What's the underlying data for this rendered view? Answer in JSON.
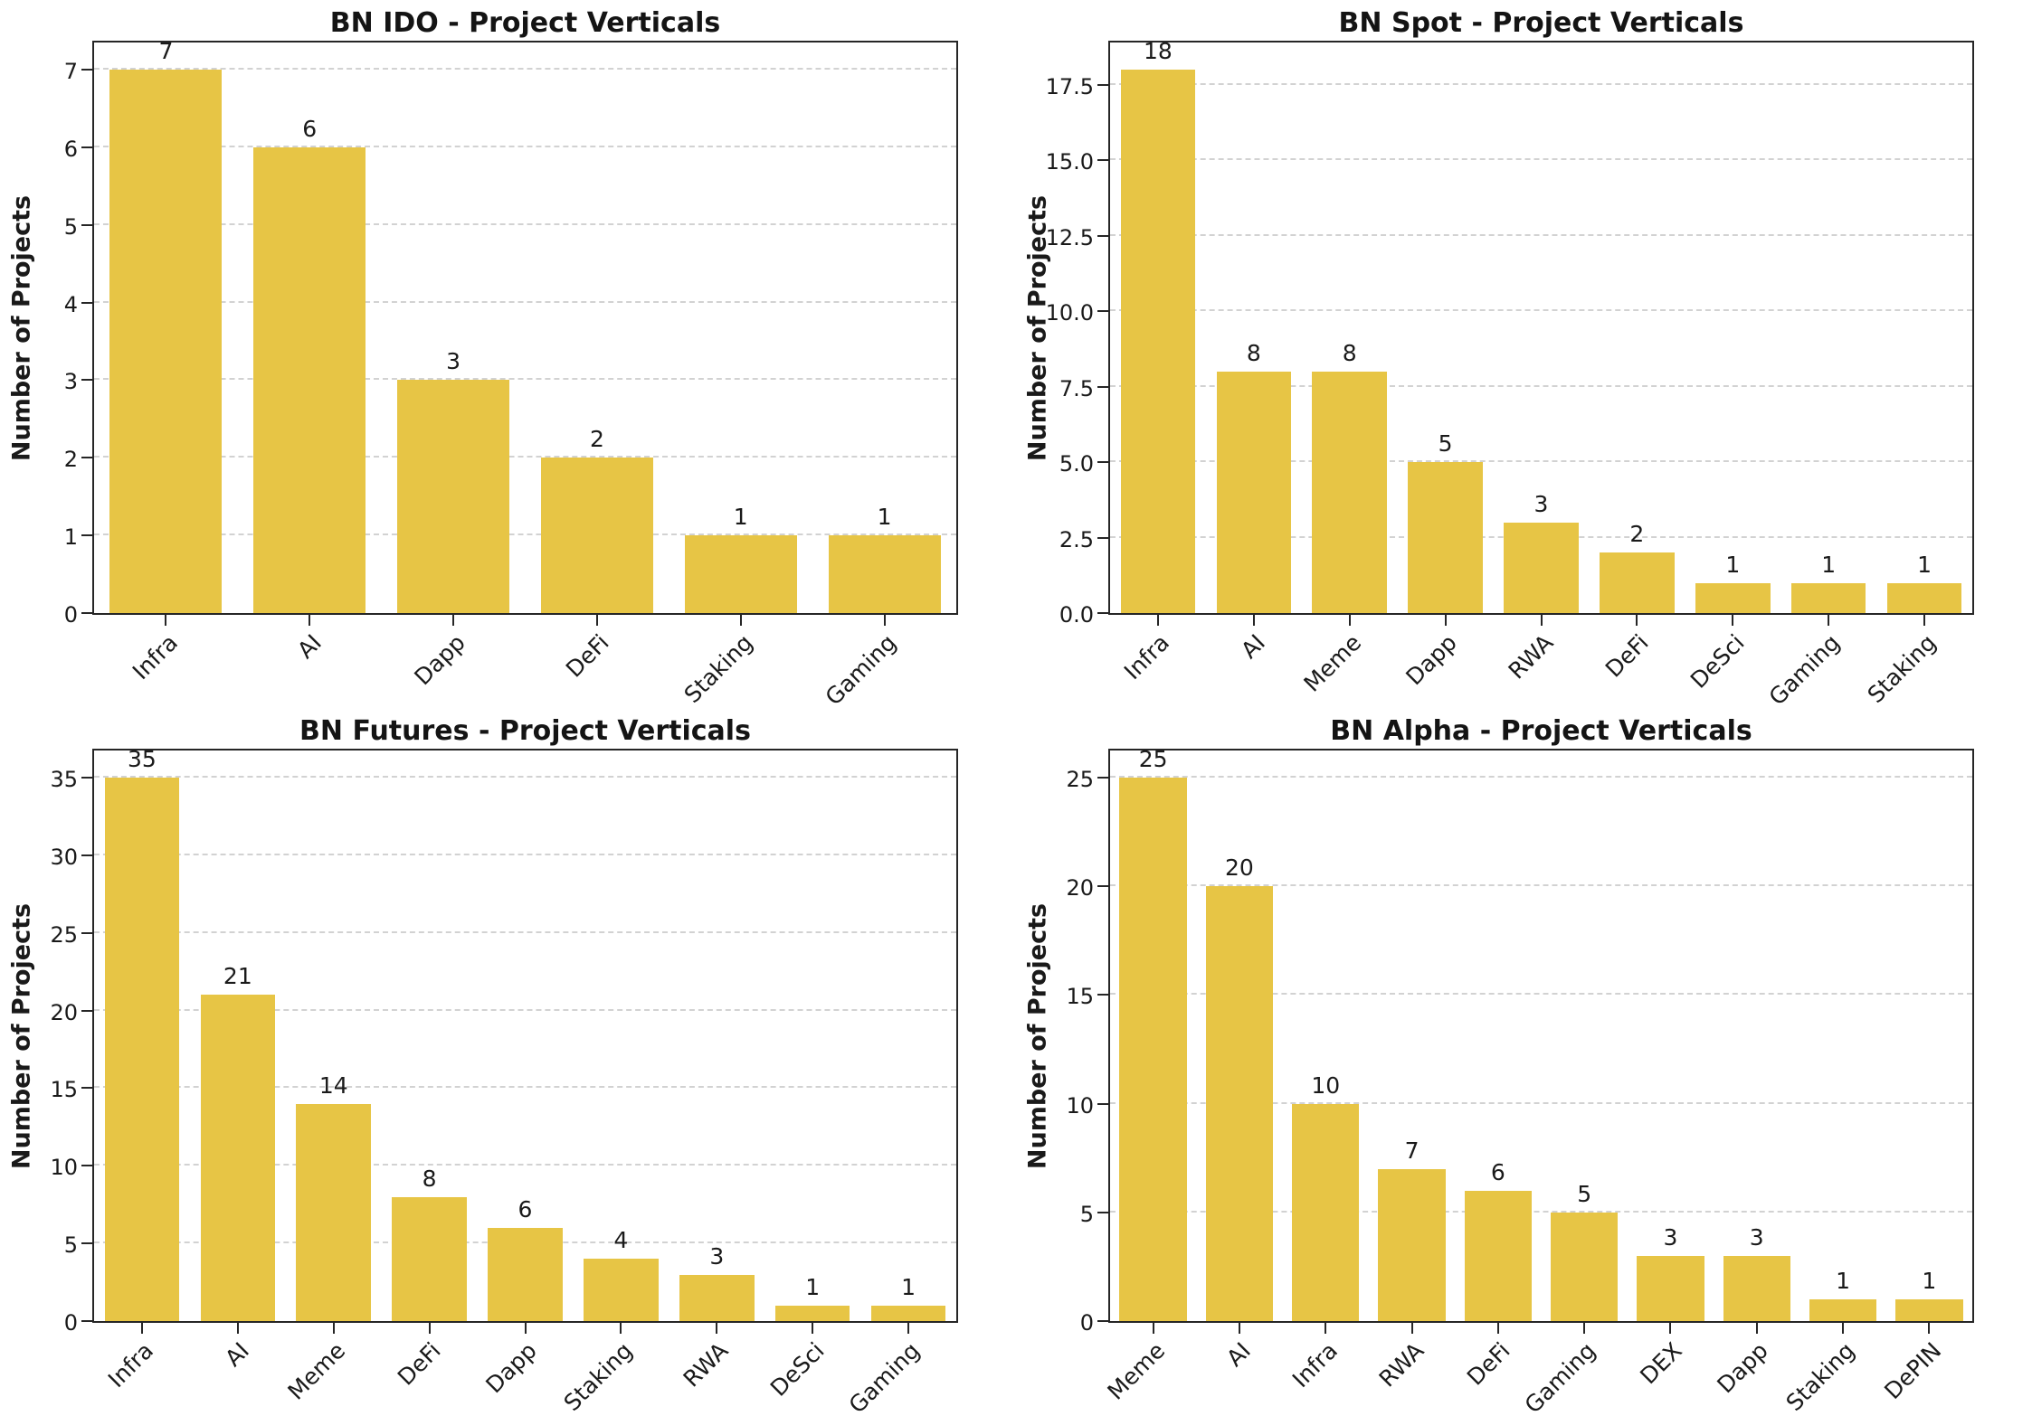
{
  "page": {
    "background": "#ffffff",
    "text_color": "#1a1a1a",
    "grid_color": "#d2d2d2",
    "spine_color": "#262626"
  },
  "chart_data": [
    {
      "type": "bar",
      "title": "BN IDO - Project Verticals",
      "ylabel": "Number of Projects",
      "xlabel": "",
      "categories": [
        "Infra",
        "AI",
        "Dapp",
        "DeFi",
        "Staking",
        "Gaming"
      ],
      "values": [
        7,
        6,
        3,
        2,
        1,
        1
      ],
      "yticks": [
        0,
        1,
        2,
        3,
        4,
        5,
        6,
        7
      ],
      "ytick_labels": [
        "0",
        "1",
        "2",
        "3",
        "4",
        "5",
        "6",
        "7"
      ],
      "ylim": [
        0,
        7.35
      ],
      "bar_color": "#E7C545",
      "grid": "horizontal-dashed",
      "legend": "none"
    },
    {
      "type": "bar",
      "title": "BN Spot - Project Verticals",
      "ylabel": "Number of Projects",
      "xlabel": "",
      "categories": [
        "Infra",
        "AI",
        "Meme",
        "Dapp",
        "RWA",
        "DeFi",
        "DeSci",
        "Gaming",
        "Staking"
      ],
      "values": [
        18,
        8,
        8,
        5,
        3,
        2,
        1,
        1,
        1
      ],
      "yticks": [
        0,
        2.5,
        5,
        7.5,
        10,
        12.5,
        15,
        17.5
      ],
      "ytick_labels": [
        "0.0",
        "2.5",
        "5.0",
        "7.5",
        "10.0",
        "12.5",
        "15.0",
        "17.5"
      ],
      "ylim": [
        0,
        18.9
      ],
      "bar_color": "#E7C545",
      "grid": "horizontal-dashed",
      "legend": "none"
    },
    {
      "type": "bar",
      "title": "BN Futures - Project Verticals",
      "ylabel": "Number of Projects",
      "xlabel": "",
      "categories": [
        "Infra",
        "AI",
        "Meme",
        "DeFi",
        "Dapp",
        "Staking",
        "RWA",
        "DeSci",
        "Gaming"
      ],
      "values": [
        35,
        21,
        14,
        8,
        6,
        4,
        3,
        1,
        1
      ],
      "yticks": [
        0,
        5,
        10,
        15,
        20,
        25,
        30,
        35
      ],
      "ytick_labels": [
        "0",
        "5",
        "10",
        "15",
        "20",
        "25",
        "30",
        "35"
      ],
      "ylim": [
        0,
        36.75
      ],
      "bar_color": "#E7C545",
      "grid": "horizontal-dashed",
      "legend": "none"
    },
    {
      "type": "bar",
      "title": "BN Alpha - Project Verticals",
      "ylabel": "Number of Projects",
      "xlabel": "",
      "categories": [
        "Meme",
        "AI",
        "Infra",
        "RWA",
        "DeFi",
        "Gaming",
        "DEX",
        "Dapp",
        "Staking",
        "DePIN"
      ],
      "values": [
        25,
        20,
        10,
        7,
        6,
        5,
        3,
        3,
        1,
        1
      ],
      "yticks": [
        0,
        5,
        10,
        15,
        20,
        25
      ],
      "ytick_labels": [
        "0",
        "5",
        "10",
        "15",
        "20",
        "25"
      ],
      "ylim": [
        0,
        26.25
      ],
      "bar_color": "#E7C545",
      "grid": "horizontal-dashed",
      "legend": "none"
    }
  ]
}
